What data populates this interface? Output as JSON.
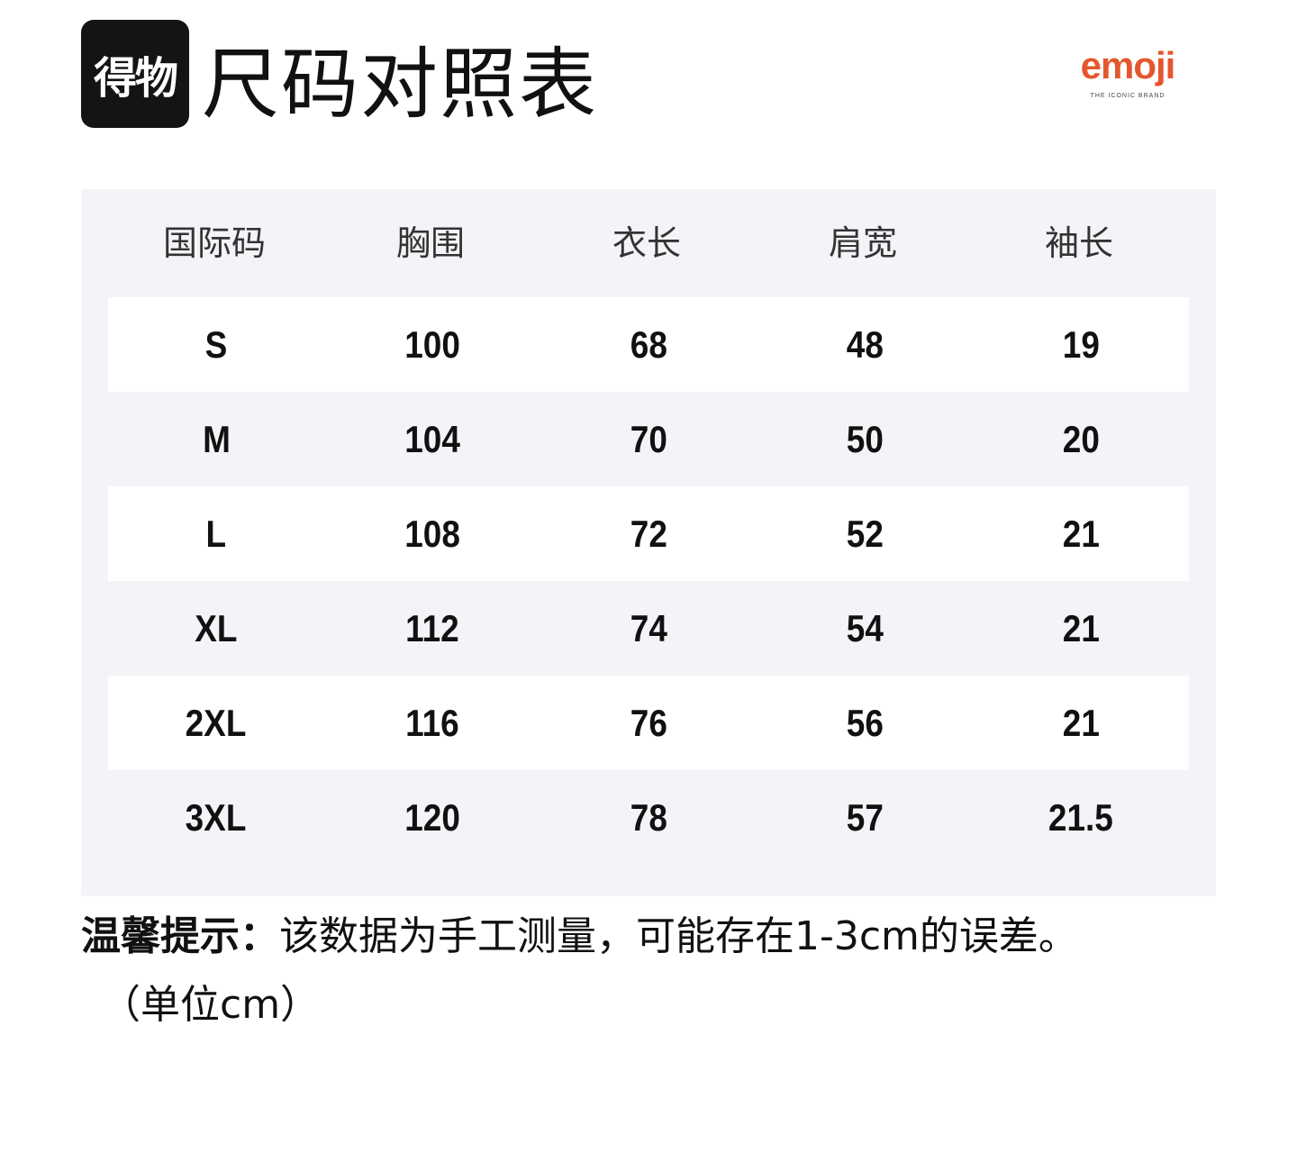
{
  "header": {
    "app_logo": "得物",
    "title": "尺码对照表",
    "brand_logo": {
      "word": "emoji",
      "tagline": "THE ICONIC BRAND",
      "color": "#e4572e"
    }
  },
  "table": {
    "columns": [
      "国际码",
      "胸围",
      "衣长",
      "肩宽",
      "袖长"
    ],
    "rows": [
      [
        "S",
        "100",
        "68",
        "48",
        "19"
      ],
      [
        "M",
        "104",
        "70",
        "50",
        "20"
      ],
      [
        "L",
        "108",
        "72",
        "52",
        "21"
      ],
      [
        "XL",
        "112",
        "74",
        "54",
        "21"
      ],
      [
        "2XL",
        "116",
        "76",
        "56",
        "21"
      ],
      [
        "3XL",
        "120",
        "78",
        "57",
        "21.5"
      ]
    ]
  },
  "note": {
    "label": "温馨提示：",
    "text": "该数据为手工测量，可能存在1-3cm的误差。",
    "unit": "（单位cm）"
  }
}
